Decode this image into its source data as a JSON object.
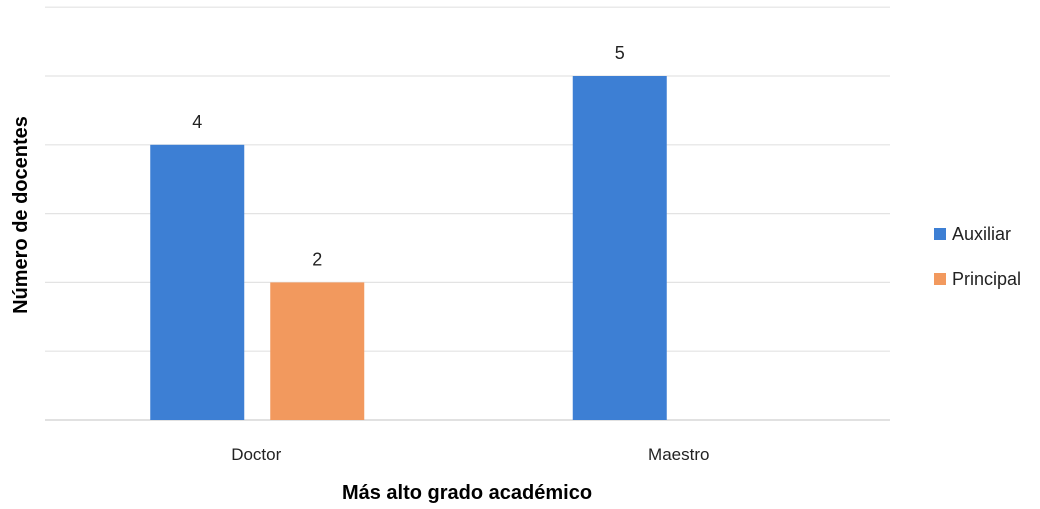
{
  "chart_data": {
    "type": "bar",
    "categories": [
      "Doctor",
      "Maestro"
    ],
    "series": [
      {
        "name": "Auxiliar",
        "values": [
          4,
          5
        ],
        "color": "#3d7fd4"
      },
      {
        "name": "Principal",
        "values": [
          2,
          null
        ],
        "color": "#f2995e"
      }
    ],
    "data_labels": [
      [
        "4",
        "5"
      ],
      [
        "2",
        ""
      ]
    ],
    "xlabel": "Más alto grado académico",
    "ylabel": "Número de docentes",
    "ylim": [
      0,
      6
    ],
    "grid": true,
    "legend_position": "right"
  }
}
